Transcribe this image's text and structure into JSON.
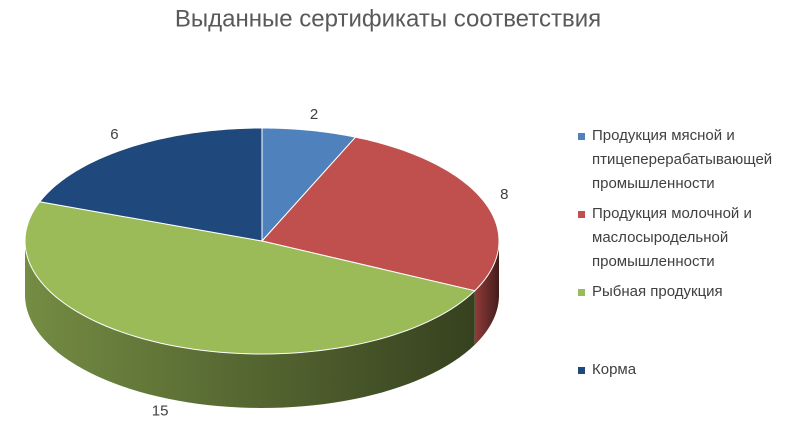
{
  "chart_data": {
    "type": "pie3d",
    "title": "Выданные сертификаты соответствия",
    "categories": [
      "Продукция мясной и птицеперерабатывающей промышленности",
      "Продукция молочной и маслосыродельной промышленности",
      "Рыбная продукция",
      "Корма"
    ],
    "values": [
      2,
      8,
      15,
      6
    ],
    "colors": [
      "#4f81bd",
      "#c0504d",
      "#9bbb59",
      "#1f497d"
    ],
    "legend": "right"
  }
}
